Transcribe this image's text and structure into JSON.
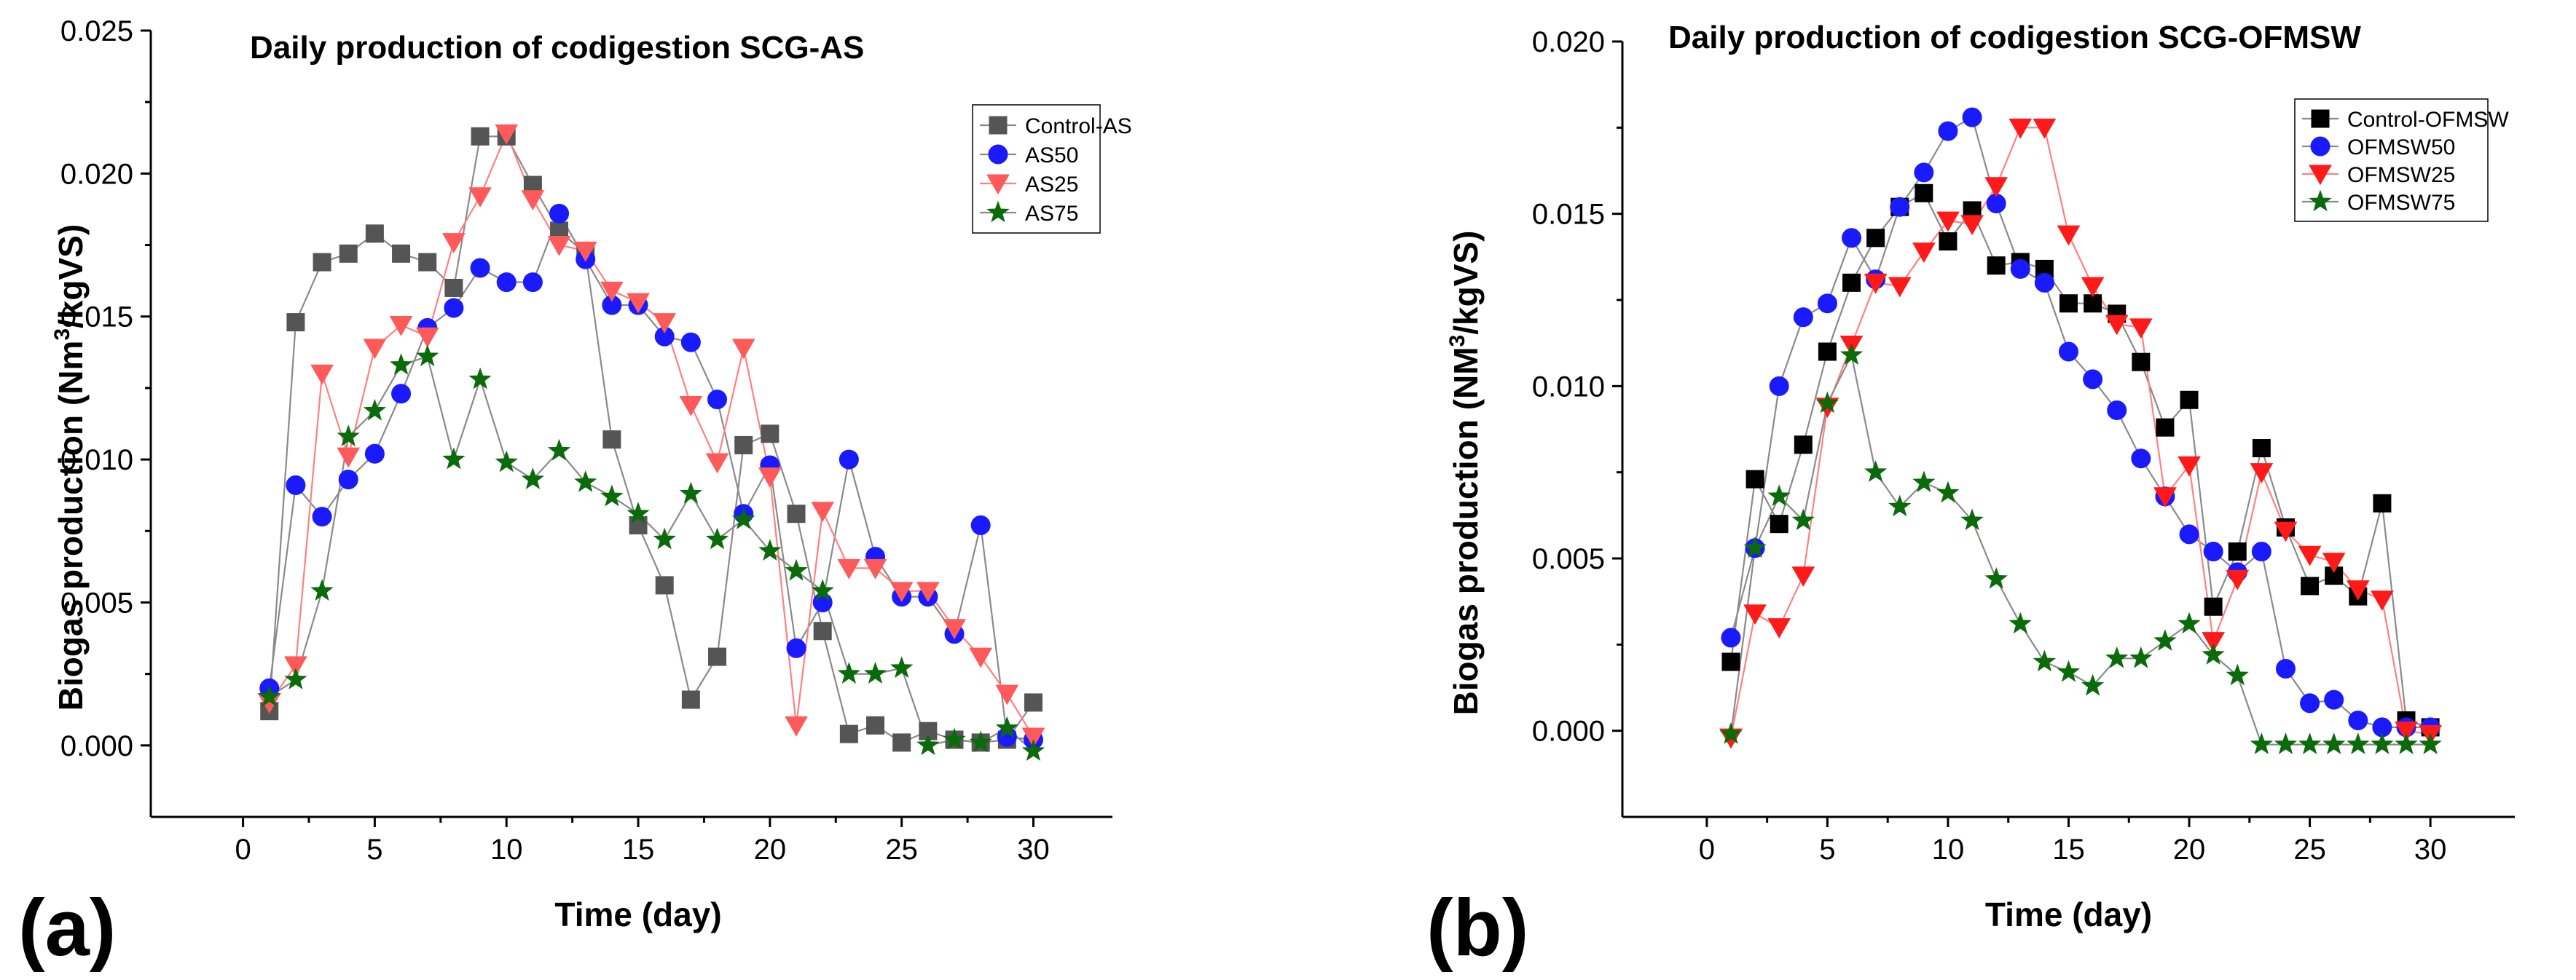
{
  "chart_data": [
    {
      "panel_label": "(a)",
      "type": "line",
      "title": "Daily production of codigestion SCG-AS",
      "xlabel": "Time (day)",
      "ylabel_prefix": "Biogas production (Nm",
      "ylabel_sup": "3",
      "ylabel_suffix": "/kgVS)",
      "xlim": [
        -3.5,
        33
      ],
      "ylim": [
        -0.0025,
        0.025
      ],
      "xticks": [
        0,
        5,
        10,
        15,
        20,
        25,
        30
      ],
      "xtick_labels": [
        "0",
        "5",
        "10",
        "15",
        "20",
        "25",
        "30"
      ],
      "yticks": [
        0,
        0.005,
        0.01,
        0.015,
        0.02,
        0.025
      ],
      "ytick_labels": [
        "0.000",
        "0.005",
        "0.010",
        "0.015",
        "0.020",
        "0.025"
      ],
      "grid": false,
      "legend_position": "top-right",
      "x": [
        1,
        2,
        3,
        4,
        5,
        6,
        7,
        8,
        9,
        10,
        11,
        12,
        13,
        14,
        15,
        16,
        17,
        18,
        19,
        20,
        21,
        22,
        23,
        24,
        25,
        26,
        27,
        28,
        29,
        30
      ],
      "series": [
        {
          "name": "Control-AS",
          "color": "#555555",
          "line_color": "#8a8a8a",
          "marker": "square",
          "values": [
            0.0012,
            0.0148,
            0.0169,
            0.0172,
            0.0179,
            0.0172,
            0.0169,
            0.016,
            0.0213,
            0.0213,
            0.0196,
            0.018,
            0.0172,
            0.0107,
            0.0077,
            0.0056,
            0.0016,
            0.0031,
            0.0105,
            0.0109,
            0.0081,
            0.004,
            0.0004,
            0.0007,
            0.0001,
            0.0005,
            0.0002,
            0.0001,
            0.0002,
            0.0015
          ]
        },
        {
          "name": "AS50",
          "color": "#1a1aff",
          "line_color": "#8a8a8a",
          "marker": "circle",
          "values": [
            0.002,
            0.0091,
            0.008,
            0.0093,
            0.0102,
            0.0123,
            0.0146,
            0.0153,
            0.0167,
            0.0162,
            0.0162,
            0.0186,
            0.017,
            0.0154,
            0.0154,
            0.0143,
            0.0141,
            0.0121,
            0.0081,
            0.0098,
            0.0034,
            0.005,
            0.01,
            0.0066,
            0.0052,
            0.0052,
            0.0039,
            0.0077,
            0.0003,
            0.0002
          ]
        },
        {
          "name": "AS25",
          "color": "#ff5a5a",
          "line_color": "#ff8080",
          "marker": "triangle-down",
          "values": [
            0.0015,
            0.0028,
            0.013,
            0.0101,
            0.0139,
            0.0147,
            0.0143,
            0.0176,
            0.0192,
            0.0214,
            0.0191,
            0.0175,
            0.0173,
            0.0159,
            0.0155,
            0.0148,
            0.0119,
            0.0099,
            0.0139,
            0.0094,
            0.0007,
            0.0082,
            0.0062,
            0.0062,
            0.0054,
            0.0054,
            0.0041,
            0.0031,
            0.0018,
            0.0003
          ]
        },
        {
          "name": "AS75",
          "color": "#0b6b0b",
          "line_color": "#8a8a8a",
          "marker": "star",
          "values": [
            0.0017,
            0.0023,
            0.0054,
            0.0108,
            0.0117,
            0.0133,
            0.0136,
            0.01,
            0.0128,
            0.0099,
            0.0093,
            0.0103,
            0.0092,
            0.0087,
            0.0081,
            0.0072,
            0.0088,
            0.0072,
            0.0079,
            0.0068,
            0.0061,
            0.0054,
            0.0025,
            0.0025,
            0.0027,
            0.0,
            0.0002,
            0.0001,
            0.0006,
            -0.0002
          ]
        }
      ]
    },
    {
      "panel_label": "(b)",
      "type": "line",
      "title": "Daily production of codigestion SCG-OFMSW",
      "xlabel": "Time (day)",
      "ylabel_prefix": "Biogas production (NM",
      "ylabel_sup": "3",
      "ylabel_suffix": "/kgVS)",
      "xlim": [
        -3.5,
        33.5
      ],
      "ylim": [
        -0.0025,
        0.02
      ],
      "xticks": [
        0,
        5,
        10,
        15,
        20,
        25,
        30
      ],
      "xtick_labels": [
        "0",
        "5",
        "10",
        "15",
        "20",
        "25",
        "30"
      ],
      "yticks": [
        0,
        0.005,
        0.01,
        0.015,
        0.02
      ],
      "ytick_labels": [
        "0.000",
        "0.005",
        "0.010",
        "0.015",
        "0.020"
      ],
      "grid": false,
      "legend_position": "top-right",
      "x": [
        1,
        2,
        3,
        4,
        5,
        6,
        7,
        8,
        9,
        10,
        11,
        12,
        13,
        14,
        15,
        16,
        17,
        18,
        19,
        20,
        21,
        22,
        23,
        24,
        25,
        26,
        27,
        28,
        29,
        30
      ],
      "series": [
        {
          "name": "Control-OFMSW",
          "color": "#000000",
          "line_color": "#8a8a8a",
          "marker": "square",
          "values": [
            0.002,
            0.0073,
            0.006,
            0.0083,
            0.011,
            0.013,
            0.0143,
            0.0152,
            0.0156,
            0.0142,
            0.0151,
            0.0135,
            0.0136,
            0.0134,
            0.0124,
            0.0124,
            0.0121,
            0.0107,
            0.0088,
            0.0096,
            0.0036,
            0.0052,
            0.0082,
            0.0059,
            0.0042,
            0.0045,
            0.0039,
            0.0066,
            0.0003,
            0.0001
          ]
        },
        {
          "name": "OFMSW50",
          "color": "#1a1aff",
          "line_color": "#8a8a8a",
          "marker": "circle",
          "values": [
            0.0027,
            0.0053,
            0.01,
            0.012,
            0.0124,
            0.0143,
            0.0131,
            0.0152,
            0.0162,
            0.0174,
            0.0178,
            0.0153,
            0.0134,
            0.013,
            0.011,
            0.0102,
            0.0093,
            0.0079,
            0.0068,
            0.0057,
            0.0052,
            0.0046,
            0.0052,
            0.0018,
            0.0008,
            0.0009,
            0.0003,
            0.0001,
            0.0001,
            0.0001
          ]
        },
        {
          "name": "OFMSW25",
          "color": "#ff1a1a",
          "line_color": "#ff8080",
          "marker": "triangle-down",
          "values": [
            -0.0002,
            0.0034,
            0.003,
            0.0045,
            0.0094,
            0.0112,
            0.013,
            0.0129,
            0.0139,
            0.0148,
            0.0147,
            0.0158,
            0.0175,
            0.0175,
            0.0144,
            0.0129,
            0.0118,
            0.0117,
            0.0068,
            0.0077,
            0.0026,
            0.0044,
            0.0075,
            0.0058,
            0.0051,
            0.0049,
            0.0041,
            0.0038,
            0.0,
            -0.0001
          ]
        },
        {
          "name": "OFMSW75",
          "color": "#0b6b0b",
          "line_color": "#8a8a8a",
          "marker": "star",
          "values": [
            -0.0001,
            0.0053,
            0.0068,
            0.0061,
            0.0095,
            0.0109,
            0.0075,
            0.0065,
            0.0072,
            0.0069,
            0.0061,
            0.0044,
            0.0031,
            0.002,
            0.0017,
            0.0013,
            0.0021,
            0.0021,
            0.0026,
            0.0031,
            0.0022,
            0.0016,
            -0.0004,
            -0.0004,
            -0.0004,
            -0.0004,
            -0.0004,
            -0.0004,
            -0.0004,
            -0.0004
          ]
        }
      ]
    }
  ]
}
